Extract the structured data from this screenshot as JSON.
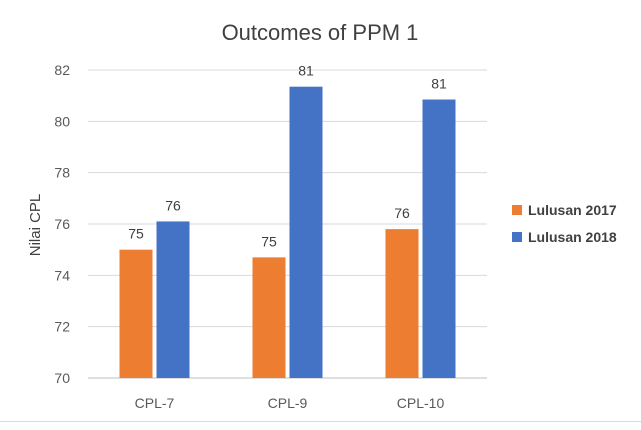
{
  "chart_data": {
    "type": "bar",
    "title": "Outcomes of PPM 1",
    "xlabel": "",
    "ylabel": "Nilai CPL",
    "ylim": [
      70,
      82
    ],
    "yticks": [
      70,
      72,
      74,
      76,
      78,
      80,
      82
    ],
    "categories": [
      "CPL-7",
      "CPL-9",
      "CPL-10"
    ],
    "series": [
      {
        "name": "Lulusan 2017",
        "color": "#ED7D31",
        "values": [
          75.0,
          74.7,
          75.8
        ],
        "labels": [
          "75",
          "75",
          "76"
        ]
      },
      {
        "name": "Lulusan 2018",
        "color": "#4472C4",
        "values": [
          76.1,
          81.35,
          80.85
        ],
        "labels": [
          "76",
          "81",
          "81"
        ]
      }
    ],
    "grid": true,
    "legend_position": "right"
  }
}
